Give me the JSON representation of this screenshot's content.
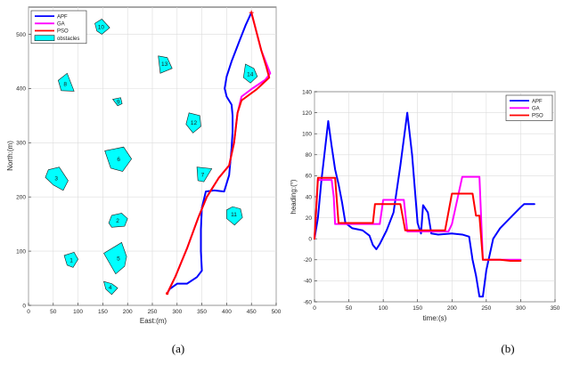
{
  "chart_data": [
    {
      "type": "line",
      "subfigure": "a",
      "caption": "(a)",
      "xlabel": "East:(m)",
      "ylabel": "North:(m)",
      "xlim": [
        0,
        500
      ],
      "ylim": [
        0,
        550
      ],
      "xticks": [
        0,
        50,
        100,
        150,
        200,
        250,
        300,
        350,
        400,
        450,
        500
      ],
      "yticks": [
        0,
        100,
        200,
        300,
        400,
        500
      ],
      "legend_position": "top-left",
      "legend": [
        "APF",
        "GA",
        "PSO",
        "obstacles"
      ],
      "obstacles": [
        {
          "label": "1",
          "points": [
            [
              72,
              92
            ],
            [
              92,
              98
            ],
            [
              100,
              85
            ],
            [
              90,
              70
            ],
            [
              78,
              74
            ]
          ]
        },
        {
          "label": "2",
          "points": [
            [
              168,
              166
            ],
            [
              188,
              170
            ],
            [
              200,
              160
            ],
            [
              194,
              146
            ],
            [
              168,
              144
            ],
            [
              162,
              152
            ]
          ]
        },
        {
          "label": "3",
          "points": [
            [
              40,
              250
            ],
            [
              62,
              255
            ],
            [
              80,
              230
            ],
            [
              70,
              212
            ],
            [
              50,
              222
            ],
            [
              34,
              236
            ]
          ]
        },
        {
          "label": "4",
          "points": [
            [
              152,
              44
            ],
            [
              168,
              40
            ],
            [
              180,
              32
            ],
            [
              168,
              20
            ],
            [
              156,
              30
            ]
          ]
        },
        {
          "label": "5",
          "points": [
            [
              152,
              96
            ],
            [
              188,
              116
            ],
            [
              198,
              90
            ],
            [
              194,
              72
            ],
            [
              176,
              58
            ]
          ]
        },
        {
          "label": "6",
          "points": [
            [
              154,
              285
            ],
            [
              192,
              292
            ],
            [
              208,
              270
            ],
            [
              190,
              247
            ],
            [
              166,
              253
            ]
          ]
        },
        {
          "label": "7",
          "points": [
            [
              340,
              255
            ],
            [
              370,
              252
            ],
            [
              354,
              228
            ],
            [
              342,
              230
            ]
          ]
        },
        {
          "label": "8",
          "points": [
            [
              60,
              415
            ],
            [
              78,
              428
            ],
            [
              92,
              395
            ],
            [
              66,
              396
            ]
          ]
        },
        {
          "label": "9",
          "points": [
            [
              170,
              380
            ],
            [
              186,
              383
            ],
            [
              189,
              372
            ],
            [
              180,
              368
            ]
          ]
        },
        {
          "label": "10",
          "points": [
            [
              134,
              520
            ],
            [
              148,
              528
            ],
            [
              164,
              512
            ],
            [
              148,
              500
            ],
            [
              138,
              506
            ]
          ]
        },
        {
          "label": "11",
          "points": [
            [
              400,
              176
            ],
            [
              412,
              182
            ],
            [
              428,
              178
            ],
            [
              432,
              162
            ],
            [
              416,
              148
            ],
            [
              400,
              160
            ]
          ]
        },
        {
          "label": "12",
          "points": [
            [
              324,
              355
            ],
            [
              346,
              350
            ],
            [
              348,
              330
            ],
            [
              332,
              318
            ],
            [
              318,
              334
            ]
          ]
        },
        {
          "label": "13",
          "points": [
            [
              262,
              460
            ],
            [
              280,
              457
            ],
            [
              290,
              437
            ],
            [
              266,
              428
            ]
          ]
        },
        {
          "label": "14",
          "points": [
            [
              438,
              445
            ],
            [
              455,
              437
            ],
            [
              462,
              422
            ],
            [
              448,
              410
            ],
            [
              434,
              420
            ]
          ]
        }
      ],
      "series": [
        {
          "name": "APF",
          "color": "#0000ff",
          "points": [
            [
              280,
              22
            ],
            [
              285,
              30
            ],
            [
              300,
              40
            ],
            [
              320,
              40
            ],
            [
              340,
              52
            ],
            [
              350,
              64
            ],
            [
              348,
              100
            ],
            [
              348,
              140
            ],
            [
              350,
              180
            ],
            [
              358,
              210
            ],
            [
              375,
              212
            ],
            [
              395,
              210
            ],
            [
              405,
              240
            ],
            [
              410,
              290
            ],
            [
              412,
              320
            ],
            [
              412,
              350
            ],
            [
              410,
              370
            ],
            [
              400,
              385
            ],
            [
              396,
              400
            ],
            [
              400,
              422
            ],
            [
              410,
              450
            ],
            [
              426,
              488
            ],
            [
              438,
              516
            ],
            [
              450,
              540
            ]
          ]
        },
        {
          "name": "GA",
          "color": "#ff00ff",
          "points": [
            [
              280,
              22
            ],
            [
              296,
              52
            ],
            [
              320,
              105
            ],
            [
              342,
              160
            ],
            [
              360,
              200
            ],
            [
              384,
              235
            ],
            [
              405,
              258
            ],
            [
              415,
              300
            ],
            [
              422,
              355
            ],
            [
              430,
              385
            ],
            [
              452,
              400
            ],
            [
              478,
              416
            ],
            [
              488,
              428
            ],
            [
              470,
              470
            ],
            [
              450,
              540
            ]
          ]
        },
        {
          "name": "PSO",
          "color": "#ff0000",
          "points": [
            [
              280,
              22
            ],
            [
              296,
              52
            ],
            [
              320,
              105
            ],
            [
              342,
              160
            ],
            [
              360,
              200
            ],
            [
              384,
              235
            ],
            [
              405,
              258
            ],
            [
              415,
              300
            ],
            [
              422,
              355
            ],
            [
              430,
              378
            ],
            [
              460,
              398
            ],
            [
              486,
              420
            ],
            [
              480,
              440
            ],
            [
              470,
              470
            ],
            [
              450,
              540
            ]
          ]
        }
      ]
    },
    {
      "type": "line",
      "subfigure": "b",
      "caption": "(b)",
      "xlabel": "time:(s)",
      "ylabel": "heading:(°)",
      "xlim": [
        0,
        350
      ],
      "ylim": [
        -60,
        140
      ],
      "xticks": [
        0,
        50,
        100,
        150,
        200,
        250,
        300,
        350
      ],
      "yticks": [
        -60,
        -40,
        -20,
        0,
        20,
        40,
        60,
        80,
        100,
        120,
        140
      ],
      "legend_position": "top-right",
      "legend": [
        "APF",
        "GA",
        "PSO"
      ],
      "series": [
        {
          "name": "APF",
          "color": "#0000ff",
          "points": [
            [
              0,
              0
            ],
            [
              5,
              20
            ],
            [
              10,
              55
            ],
            [
              20,
              112
            ],
            [
              25,
              88
            ],
            [
              30,
              66
            ],
            [
              35,
              52
            ],
            [
              40,
              35
            ],
            [
              45,
              15
            ],
            [
              55,
              10
            ],
            [
              70,
              8
            ],
            [
              80,
              3
            ],
            [
              85,
              -6
            ],
            [
              90,
              -10
            ],
            [
              95,
              -5
            ],
            [
              105,
              8
            ],
            [
              115,
              25
            ],
            [
              125,
              70
            ],
            [
              135,
              120
            ],
            [
              142,
              80
            ],
            [
              150,
              15
            ],
            [
              155,
              5
            ],
            [
              158,
              32
            ],
            [
              165,
              25
            ],
            [
              170,
              5
            ],
            [
              180,
              4
            ],
            [
              200,
              5
            ],
            [
              215,
              4
            ],
            [
              225,
              2
            ],
            [
              230,
              -20
            ],
            [
              235,
              -35
            ],
            [
              240,
              -55
            ],
            [
              245,
              -55
            ],
            [
              250,
              -30
            ],
            [
              260,
              0
            ],
            [
              270,
              10
            ],
            [
              285,
              20
            ],
            [
              300,
              30
            ],
            [
              305,
              33
            ],
            [
              320,
              33
            ]
          ]
        },
        {
          "name": "GA",
          "color": "#ff00ff",
          "points": [
            [
              0,
              0
            ],
            [
              5,
              56
            ],
            [
              25,
              56
            ],
            [
              28,
              40
            ],
            [
              30,
              14
            ],
            [
              60,
              14
            ],
            [
              95,
              14
            ],
            [
              100,
              37
            ],
            [
              130,
              37
            ],
            [
              135,
              7
            ],
            [
              185,
              7
            ],
            [
              195,
              7
            ],
            [
              200,
              14
            ],
            [
              215,
              59
            ],
            [
              240,
              59
            ],
            [
              245,
              -20
            ],
            [
              270,
              -20
            ],
            [
              290,
              -20
            ],
            [
              300,
              -20
            ]
          ]
        },
        {
          "name": "PSO",
          "color": "#ff0000",
          "points": [
            [
              0,
              0
            ],
            [
              5,
              58
            ],
            [
              30,
              58
            ],
            [
              35,
              15
            ],
            [
              50,
              15
            ],
            [
              60,
              15
            ],
            [
              85,
              15
            ],
            [
              88,
              33
            ],
            [
              105,
              33
            ],
            [
              125,
              33
            ],
            [
              132,
              8
            ],
            [
              150,
              8
            ],
            [
              170,
              8
            ],
            [
              190,
              8
            ],
            [
              200,
              43
            ],
            [
              230,
              43
            ],
            [
              235,
              22
            ],
            [
              240,
              22
            ],
            [
              245,
              -20
            ],
            [
              270,
              -20
            ],
            [
              285,
              -21
            ],
            [
              300,
              -21
            ]
          ]
        }
      ]
    }
  ]
}
